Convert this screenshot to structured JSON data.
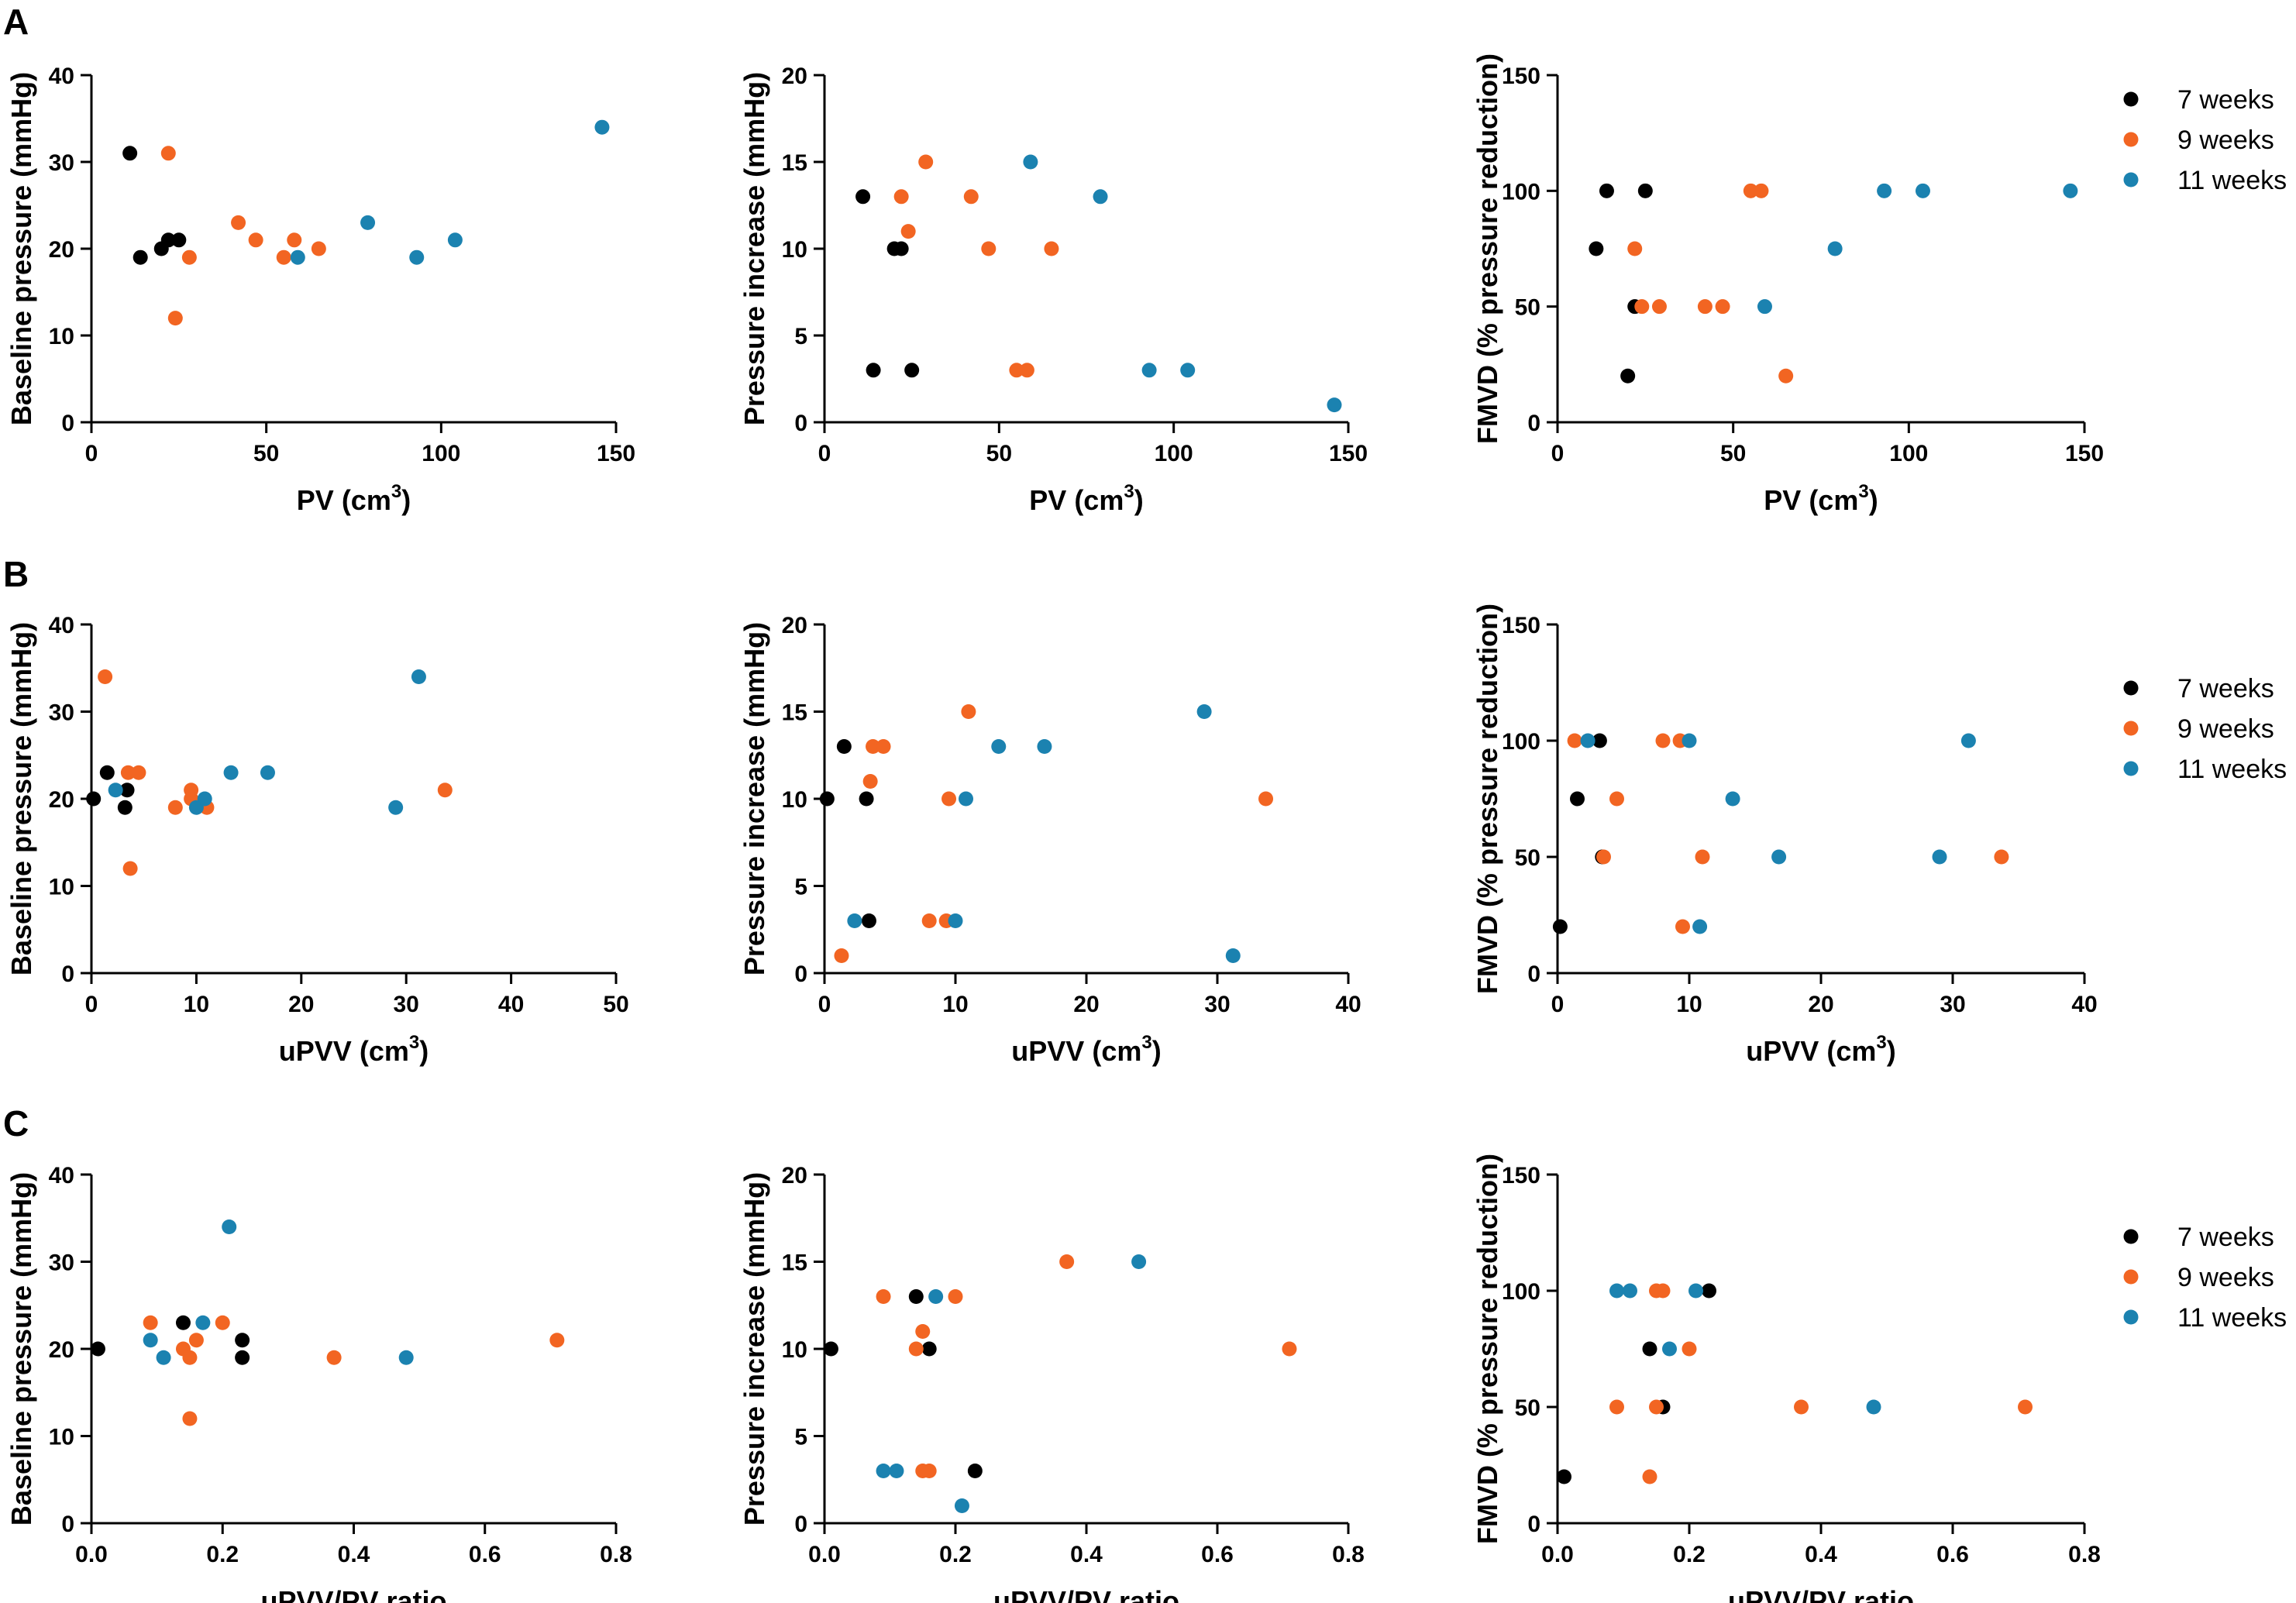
{
  "figure": {
    "row_letters": [
      "A",
      "B",
      "C"
    ],
    "legend_entries": [
      {
        "label": "7 weeks",
        "color": "#000000"
      },
      {
        "label": "9 weeks",
        "color": "#f26522"
      },
      {
        "label": "11 weeks",
        "color": "#1b82b0"
      }
    ]
  },
  "chart_data": [
    {
      "type": "scatter",
      "id": "A1",
      "xlabel": "PV (cm3)",
      "xlabel_main": "PV (cm",
      "xlabel_sup": "3",
      "xlabel_end": ")",
      "ylabel": "Baseline pressure (mmHg)",
      "xlim": [
        0,
        150
      ],
      "ylim": [
        0,
        40
      ],
      "xticks": [
        0,
        50,
        100,
        150
      ],
      "yticks": [
        0,
        10,
        20,
        30,
        40
      ],
      "series": [
        {
          "name": "7 weeks",
          "points": [
            [
              11,
              31
            ],
            [
              14,
              19
            ],
            [
              20,
              20
            ],
            [
              22,
              21
            ],
            [
              25,
              21
            ]
          ]
        },
        {
          "name": "9 weeks",
          "points": [
            [
              22,
              31
            ],
            [
              24,
              12
            ],
            [
              28,
              19
            ],
            [
              42,
              23
            ],
            [
              47,
              21
            ],
            [
              55,
              19
            ],
            [
              58,
              21
            ],
            [
              65,
              20
            ]
          ]
        },
        {
          "name": "11 weeks",
          "points": [
            [
              59,
              19
            ],
            [
              79,
              23
            ],
            [
              93,
              19
            ],
            [
              104,
              21
            ],
            [
              146,
              34
            ]
          ]
        }
      ]
    },
    {
      "type": "scatter",
      "id": "A2",
      "xlabel": "PV (cm3)",
      "xlabel_main": "PV (cm",
      "xlabel_sup": "3",
      "xlabel_end": ")",
      "ylabel": "Pressure increase (mmHg)",
      "xlim": [
        0,
        150
      ],
      "ylim": [
        0,
        20
      ],
      "xticks": [
        0,
        50,
        100,
        150
      ],
      "yticks": [
        0,
        5,
        10,
        15,
        20
      ],
      "series": [
        {
          "name": "7 weeks",
          "points": [
            [
              11,
              13
            ],
            [
              14,
              3
            ],
            [
              20,
              10
            ],
            [
              22,
              10
            ],
            [
              25,
              3
            ]
          ]
        },
        {
          "name": "9 weeks",
          "points": [
            [
              22,
              13
            ],
            [
              24,
              11
            ],
            [
              29,
              15
            ],
            [
              42,
              13
            ],
            [
              47,
              10
            ],
            [
              55,
              3
            ],
            [
              58,
              3
            ],
            [
              65,
              10
            ]
          ]
        },
        {
          "name": "11 weeks",
          "points": [
            [
              59,
              15
            ],
            [
              79,
              13
            ],
            [
              93,
              3
            ],
            [
              104,
              3
            ],
            [
              146,
              1
            ]
          ]
        }
      ]
    },
    {
      "type": "scatter",
      "id": "A3",
      "xlabel": "PV (cm3)",
      "xlabel_main": "PV (cm",
      "xlabel_sup": "3",
      "xlabel_end": ")",
      "ylabel": "FMVD (% pressure reduction)",
      "xlim": [
        0,
        150
      ],
      "ylim": [
        0,
        150
      ],
      "xticks": [
        0,
        50,
        100,
        150
      ],
      "yticks": [
        0,
        50,
        100,
        150
      ],
      "series": [
        {
          "name": "7 weeks",
          "points": [
            [
              11,
              75
            ],
            [
              14,
              100
            ],
            [
              20,
              20
            ],
            [
              22,
              50
            ],
            [
              25,
              100
            ]
          ]
        },
        {
          "name": "9 weeks",
          "points": [
            [
              22,
              75
            ],
            [
              24,
              50
            ],
            [
              29,
              50
            ],
            [
              42,
              50
            ],
            [
              47,
              50
            ],
            [
              55,
              100
            ],
            [
              58,
              100
            ],
            [
              65,
              20
            ]
          ]
        },
        {
          "name": "11 weeks",
          "points": [
            [
              59,
              50
            ],
            [
              79,
              75
            ],
            [
              93,
              100
            ],
            [
              104,
              100
            ],
            [
              146,
              100
            ]
          ]
        }
      ]
    },
    {
      "type": "scatter",
      "id": "B1",
      "xlabel": "uPVV (cm3)",
      "xlabel_main": "uPVV (cm",
      "xlabel_sup": "3",
      "xlabel_end": ")",
      "ylabel": "Baseline pressure (mmHg)",
      "xlim": [
        0,
        50
      ],
      "ylim": [
        0,
        40
      ],
      "xticks": [
        0,
        10,
        20,
        30,
        40,
        50
      ],
      "yticks": [
        0,
        10,
        20,
        30,
        40
      ],
      "series": [
        {
          "name": "7 weeks",
          "points": [
            [
              0.2,
              20
            ],
            [
              1.5,
              23
            ],
            [
              3.2,
              19
            ],
            [
              3.4,
              21
            ]
          ]
        },
        {
          "name": "9 weeks",
          "points": [
            [
              1.3,
              34
            ],
            [
              3.5,
              23
            ],
            [
              3.7,
              12
            ],
            [
              4.5,
              23
            ],
            [
              8,
              19
            ],
            [
              9.5,
              21
            ],
            [
              9.5,
              20
            ],
            [
              11,
              19
            ],
            [
              33.7,
              21
            ]
          ]
        },
        {
          "name": "11 weeks",
          "points": [
            [
              2.3,
              21
            ],
            [
              10,
              19
            ],
            [
              10.8,
              20
            ],
            [
              13.3,
              23
            ],
            [
              16.8,
              23
            ],
            [
              29,
              19
            ],
            [
              31.2,
              34
            ]
          ]
        }
      ]
    },
    {
      "type": "scatter",
      "id": "B2",
      "xlabel": "uPVV (cm3)",
      "xlabel_main": "uPVV (cm",
      "xlabel_sup": "3",
      "xlabel_end": ")",
      "ylabel": "Pressure increase (mmHg)",
      "xlim": [
        0,
        40
      ],
      "ylim": [
        0,
        20
      ],
      "xticks": [
        0,
        10,
        20,
        30,
        40
      ],
      "yticks": [
        0,
        5,
        10,
        15,
        20
      ],
      "series": [
        {
          "name": "7 weeks",
          "points": [
            [
              0.2,
              10
            ],
            [
              1.5,
              13
            ],
            [
              3.2,
              10
            ],
            [
              3.4,
              3
            ]
          ]
        },
        {
          "name": "9 weeks",
          "points": [
            [
              1.3,
              1
            ],
            [
              3.5,
              11
            ],
            [
              3.7,
              13
            ],
            [
              4.5,
              13
            ],
            [
              8,
              3
            ],
            [
              9.5,
              10
            ],
            [
              9.3,
              3
            ],
            [
              11,
              15
            ],
            [
              33.7,
              10
            ]
          ]
        },
        {
          "name": "11 weeks",
          "points": [
            [
              2.3,
              3
            ],
            [
              10,
              3
            ],
            [
              10.8,
              10
            ],
            [
              13.3,
              13
            ],
            [
              16.8,
              13
            ],
            [
              29,
              15
            ],
            [
              31.2,
              1
            ]
          ]
        }
      ]
    },
    {
      "type": "scatter",
      "id": "B3",
      "xlabel": "uPVV (cm3)",
      "xlabel_main": "uPVV (cm",
      "xlabel_sup": "3",
      "xlabel_end": ")",
      "ylabel": "FMVD (% pressure reduction)",
      "xlim": [
        0,
        40
      ],
      "ylim": [
        0,
        150
      ],
      "xticks": [
        0,
        10,
        20,
        30,
        40
      ],
      "yticks": [
        0,
        50,
        100,
        150
      ],
      "series": [
        {
          "name": "7 weeks",
          "points": [
            [
              0.2,
              20
            ],
            [
              1.5,
              75
            ],
            [
              3.2,
              100
            ],
            [
              3.4,
              50
            ]
          ]
        },
        {
          "name": "9 weeks",
          "points": [
            [
              1.3,
              100
            ],
            [
              3.5,
              50
            ],
            [
              4.5,
              75
            ],
            [
              8,
              100
            ],
            [
              9.3,
              100
            ],
            [
              9.5,
              20
            ],
            [
              11,
              50
            ],
            [
              33.7,
              50
            ]
          ]
        },
        {
          "name": "11 weeks",
          "points": [
            [
              2.3,
              100
            ],
            [
              10,
              100
            ],
            [
              10.8,
              20
            ],
            [
              13.3,
              75
            ],
            [
              16.8,
              50
            ],
            [
              29,
              50
            ],
            [
              31.2,
              100
            ]
          ]
        }
      ]
    },
    {
      "type": "scatter",
      "id": "C1",
      "xlabel": "uPVV/PV ratio",
      "xlabel_main": "uPVV/PV ratio",
      "xlabel_sup": "",
      "xlabel_end": "",
      "ylabel": "Baseline pressure (mmHg)",
      "xlim": [
        0,
        0.8
      ],
      "ylim": [
        0,
        40
      ],
      "xticks": [
        0.0,
        0.2,
        0.4,
        0.6,
        0.8
      ],
      "yticks": [
        0,
        10,
        20,
        30,
        40
      ],
      "series": [
        {
          "name": "7 weeks",
          "points": [
            [
              0.01,
              20
            ],
            [
              0.14,
              23
            ],
            [
              0.23,
              21
            ],
            [
              0.23,
              19
            ]
          ]
        },
        {
          "name": "9 weeks",
          "points": [
            [
              0.09,
              23
            ],
            [
              0.14,
              20
            ],
            [
              0.15,
              19
            ],
            [
              0.15,
              12
            ],
            [
              0.16,
              21
            ],
            [
              0.2,
              23
            ],
            [
              0.37,
              19
            ],
            [
              0.71,
              21
            ]
          ]
        },
        {
          "name": "11 weeks",
          "points": [
            [
              0.09,
              21
            ],
            [
              0.11,
              19
            ],
            [
              0.17,
              23
            ],
            [
              0.21,
              34
            ],
            [
              0.48,
              19
            ]
          ]
        }
      ]
    },
    {
      "type": "scatter",
      "id": "C2",
      "xlabel": "uPVV/PV ratio",
      "xlabel_main": "uPVV/PV ratio",
      "xlabel_sup": "",
      "xlabel_end": "",
      "ylabel": "Pressure increase (mmHg)",
      "xlim": [
        0,
        0.8
      ],
      "ylim": [
        0,
        20
      ],
      "xticks": [
        0.0,
        0.2,
        0.4,
        0.6,
        0.8
      ],
      "yticks": [
        0,
        5,
        10,
        15,
        20
      ],
      "series": [
        {
          "name": "7 weeks",
          "points": [
            [
              0.01,
              10
            ],
            [
              0.14,
              13
            ],
            [
              0.16,
              10
            ],
            [
              0.23,
              3
            ]
          ]
        },
        {
          "name": "9 weeks",
          "points": [
            [
              0.09,
              13
            ],
            [
              0.14,
              10
            ],
            [
              0.15,
              11
            ],
            [
              0.15,
              3
            ],
            [
              0.16,
              3
            ],
            [
              0.2,
              13
            ],
            [
              0.37,
              15
            ],
            [
              0.71,
              10
            ]
          ]
        },
        {
          "name": "11 weeks",
          "points": [
            [
              0.09,
              3
            ],
            [
              0.11,
              3
            ],
            [
              0.17,
              13
            ],
            [
              0.21,
              1
            ],
            [
              0.48,
              15
            ]
          ]
        }
      ]
    },
    {
      "type": "scatter",
      "id": "C3",
      "xlabel": "uPVV/PV ratio",
      "xlabel_main": "uPVV/PV ratio",
      "xlabel_sup": "",
      "xlabel_end": "",
      "ylabel": "FMVD (% pressure reduction)",
      "xlim": [
        0,
        0.8
      ],
      "ylim": [
        0,
        150
      ],
      "xticks": [
        0.0,
        0.2,
        0.4,
        0.6,
        0.8
      ],
      "yticks": [
        0,
        50,
        100,
        150
      ],
      "series": [
        {
          "name": "7 weeks",
          "points": [
            [
              0.01,
              20
            ],
            [
              0.14,
              75
            ],
            [
              0.16,
              50
            ],
            [
              0.23,
              100
            ]
          ]
        },
        {
          "name": "9 weeks",
          "points": [
            [
              0.09,
              50
            ],
            [
              0.14,
              20
            ],
            [
              0.15,
              50
            ],
            [
              0.15,
              100
            ],
            [
              0.16,
              100
            ],
            [
              0.2,
              75
            ],
            [
              0.37,
              50
            ],
            [
              0.71,
              50
            ]
          ]
        },
        {
          "name": "11 weeks",
          "points": [
            [
              0.09,
              100
            ],
            [
              0.11,
              100
            ],
            [
              0.17,
              75
            ],
            [
              0.21,
              100
            ],
            [
              0.48,
              50
            ]
          ]
        }
      ]
    }
  ]
}
